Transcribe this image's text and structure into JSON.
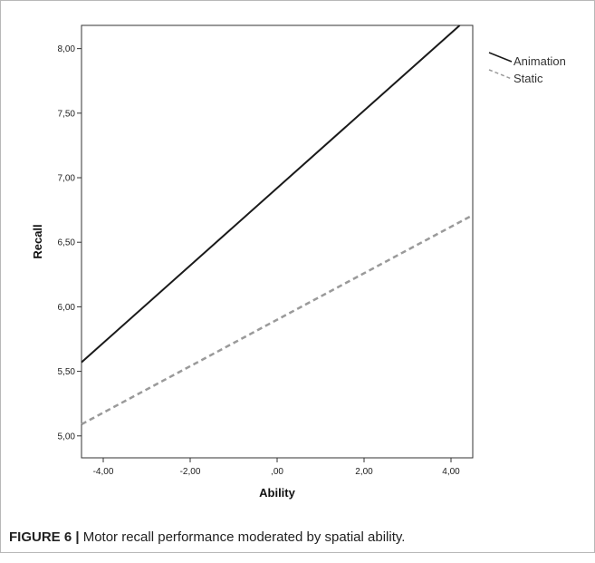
{
  "caption": {
    "label": "FIGURE 6 |",
    "text": " Motor recall performance moderated by spatial ability."
  },
  "chart_data": {
    "type": "line",
    "title": "",
    "xlabel": "Ability",
    "ylabel": "Recall",
    "xlim": [
      -4.5,
      4.5
    ],
    "ylim": [
      4.83,
      8.18
    ],
    "grid": false,
    "legend_position": "outside-top-right",
    "x_ticks": [
      {
        "value": -4,
        "label": "-4,00"
      },
      {
        "value": -2,
        "label": "-2,00"
      },
      {
        "value": 0,
        "label": ",00"
      },
      {
        "value": 2,
        "label": "2,00"
      },
      {
        "value": 4,
        "label": "4,00"
      }
    ],
    "y_ticks": [
      {
        "value": 5.0,
        "label": "5,00"
      },
      {
        "value": 5.5,
        "label": "5,50"
      },
      {
        "value": 6.0,
        "label": "6,00"
      },
      {
        "value": 6.5,
        "label": "6,50"
      },
      {
        "value": 7.0,
        "label": "7,00"
      },
      {
        "value": 7.5,
        "label": "7,50"
      },
      {
        "value": 8.0,
        "label": "8,00"
      }
    ],
    "series": [
      {
        "name": "Animation",
        "x": [
          -4.5,
          4.2
        ],
        "y": [
          5.57,
          8.18
        ],
        "color": "#1a1a1a",
        "dash": "solid"
      },
      {
        "name": "Static",
        "x": [
          -4.5,
          4.5
        ],
        "y": [
          5.09,
          6.71
        ],
        "color": "#9a9a9a",
        "dash": "dashed"
      }
    ]
  }
}
